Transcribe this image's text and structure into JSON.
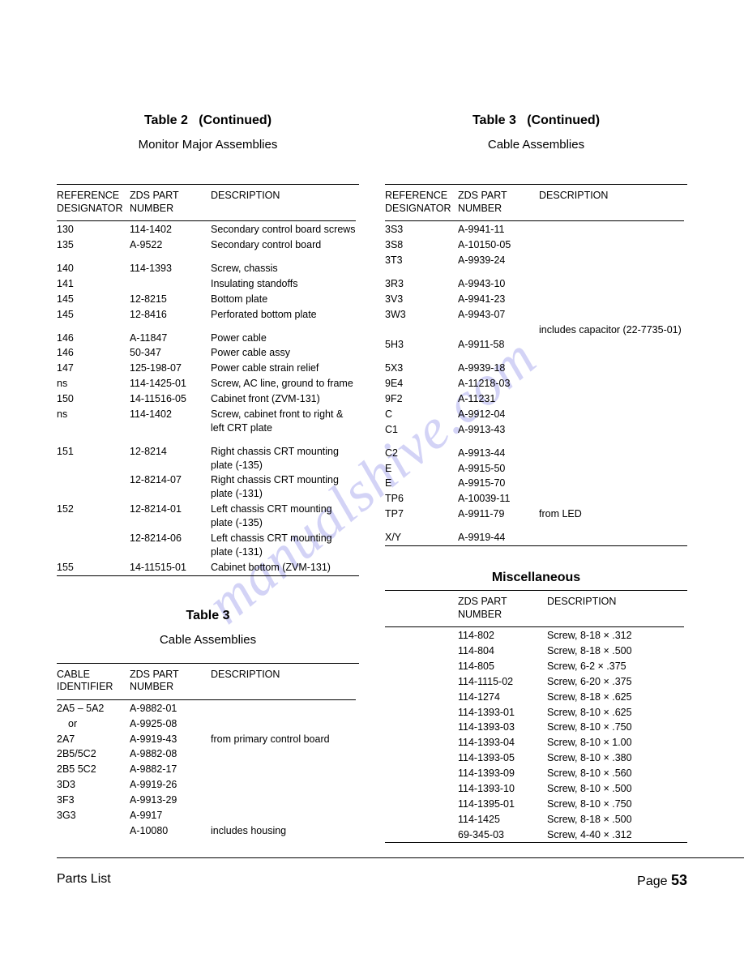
{
  "watermark_text": "manualshive.com",
  "left": {
    "t2_title": "Table 2",
    "t2_cont": "(Continued)",
    "t2_subtitle": "Monitor Major Assemblies",
    "t2_h1a": "REFERENCE",
    "t2_h1b": "DESIGNATOR",
    "t2_h2a": "ZDS PART",
    "t2_h2b": "NUMBER",
    "t2_h3": "DESCRIPTION",
    "t2_rows_g1": [
      {
        "r": "130",
        "p": "114-1402",
        "d": "Secondary control board screws"
      },
      {
        "r": "135",
        "p": "A-9522",
        "d": "Secondary control board"
      }
    ],
    "t2_rows_g2": [
      {
        "r": "140",
        "p": "114-1393",
        "d": "Screw, chassis"
      },
      {
        "r": "141",
        "p": "",
        "d": "Insulating standoffs"
      },
      {
        "r": "145",
        "p": "12-8215",
        "d": "Bottom plate"
      },
      {
        "r": "145",
        "p": "12-8416",
        "d": "Perforated bottom plate"
      }
    ],
    "t2_rows_g3": [
      {
        "r": "146",
        "p": "A-11847",
        "d": "Power cable"
      },
      {
        "r": "146",
        "p": "50-347",
        "d": "Power cable assy"
      },
      {
        "r": "147",
        "p": "125-198-07",
        "d": "Power cable strain relief"
      },
      {
        "r": "ns",
        "p": "114-1425-01",
        "d": "Screw, AC line, ground to frame"
      },
      {
        "r": "150",
        "p": "14-11516-05",
        "d": "Cabinet front (ZVM-131)"
      },
      {
        "r": "ns",
        "p": "114-1402",
        "d": "Screw, cabinet front to right & left CRT plate"
      }
    ],
    "t2_rows_g4": [
      {
        "r": "151",
        "p": "12-8214",
        "d": "Right chassis CRT mounting plate (-135)"
      },
      {
        "r": "",
        "p": "12-8214-07",
        "d": "Right chassis CRT mounting plate (-131)"
      },
      {
        "r": "152",
        "p": "12-8214-01",
        "d": "Left chassis CRT mounting plate (-135)"
      },
      {
        "r": "",
        "p": "12-8214-06",
        "d": "Left chassis CRT mounting plate (-131)"
      },
      {
        "r": "155",
        "p": "14-11515-01",
        "d": "Cabinet bottom (ZVM-131)"
      }
    ],
    "t3_title": "Table 3",
    "t3_subtitle": "Cable Assemblies",
    "t3_h1a": "CABLE",
    "t3_h1b": "IDENTIFIER",
    "t3_h2a": "ZDS PART",
    "t3_h2b": "NUMBER",
    "t3_h3": "DESCRIPTION",
    "t3_rows": [
      {
        "r": "2A5 – 5A2",
        "p": "A-9882-01",
        "d": ""
      },
      {
        "r": "   or",
        "p": "A-9925-08",
        "d": ""
      },
      {
        "r": "2A7",
        "p": "A-9919-43",
        "d": "from primary control board"
      },
      {
        "r": "2B5/5C2",
        "p": "A-9882-08",
        "d": ""
      },
      {
        "r": "2B5 5C2",
        "p": "A-9882-17",
        "d": ""
      },
      {
        "r": "3D3",
        "p": "A-9919-26",
        "d": ""
      },
      {
        "r": "3F3",
        "p": "A-9913-29",
        "d": ""
      },
      {
        "r": "3G3",
        "p": "A-9917",
        "d": ""
      },
      {
        "r": "",
        "p": "A-10080",
        "d": "includes housing"
      }
    ]
  },
  "right": {
    "t3c_title": "Table 3",
    "t3c_cont": "(Continued)",
    "t3c_subtitle": "Cable Assemblies",
    "h1a": "REFERENCE",
    "h1b": "DESIGNATOR",
    "h2a": "ZDS PART",
    "h2b": "NUMBER",
    "h3": "DESCRIPTION",
    "rows_g1": [
      {
        "r": "3S3",
        "p": "A-9941-11",
        "d": ""
      },
      {
        "r": "3S8",
        "p": "A-10150-05",
        "d": ""
      },
      {
        "r": "3T3",
        "p": "A-9939-24",
        "d": ""
      }
    ],
    "rows_g2": [
      {
        "r": "3R3",
        "p": "A-9943-10",
        "d": ""
      },
      {
        "r": "3V3",
        "p": "A-9941-23",
        "d": ""
      },
      {
        "r": "3W3",
        "p": "A-9943-07",
        "d": ""
      },
      {
        "r": "",
        "p": "",
        "d": "includes capacitor (22-7735-01)"
      },
      {
        "r": "5H3",
        "p": "A-9911-58",
        "d": ""
      }
    ],
    "rows_g3": [
      {
        "r": "5X3",
        "p": "A-9939-18",
        "d": ""
      },
      {
        "r": "9E4",
        "p": "A-11218-03",
        "d": ""
      },
      {
        "r": "9F2",
        "p": "A-11231",
        "d": ""
      },
      {
        "r": "C",
        "p": "A-9912-04",
        "d": ""
      },
      {
        "r": "C1",
        "p": "A-9913-43",
        "d": ""
      }
    ],
    "rows_g4": [
      {
        "r": "C2",
        "p": "A-9913-44",
        "d": ""
      },
      {
        "r": "E",
        "p": "A-9915-50",
        "d": ""
      },
      {
        "r": "E",
        "p": "A-9915-70",
        "d": ""
      },
      {
        "r": "TP6",
        "p": "A-10039-11",
        "d": ""
      },
      {
        "r": "TP7",
        "p": "A-9911-79",
        "d": "from LED"
      }
    ],
    "rows_g5": [
      {
        "r": "X/Y",
        "p": "A-9919-44",
        "d": ""
      }
    ],
    "misc_title": "Miscellaneous",
    "misc_h2a": "ZDS PART",
    "misc_h2b": "NUMBER",
    "misc_h3": "DESCRIPTION",
    "misc_rows": [
      {
        "p": "114-802",
        "d": "Screw, 8-18 × .312"
      },
      {
        "p": "114-804",
        "d": "Screw, 8-18 × .500"
      },
      {
        "p": "114-805",
        "d": "Screw, 6-2  × .375"
      },
      {
        "p": "114-1115-02",
        "d": "Screw, 6-20 × .375"
      },
      {
        "p": "114-1274",
        "d": "Screw, 8-18 × .625"
      },
      {
        "p": "114-1393-01",
        "d": "Screw, 8-10 × .625"
      },
      {
        "p": "114-1393-03",
        "d": "Screw, 8-10 × .750"
      },
      {
        "p": "114-1393-04",
        "d": "Screw, 8-10 × 1.00"
      },
      {
        "p": "114-1393-05",
        "d": "Screw, 8-10 × .380"
      },
      {
        "p": "114-1393-09",
        "d": "Screw, 8-10 × .560"
      },
      {
        "p": "114-1393-10",
        "d": "Screw, 8-10 × .500"
      },
      {
        "p": "114-1395-01",
        "d": "Screw, 8-10 × .750"
      },
      {
        "p": "114-1425",
        "d": "Screw, 8-18 × .500"
      },
      {
        "p": "69-345-03",
        "d": "Screw, 4-40 × .312"
      }
    ]
  },
  "footer_left": "Parts  List",
  "footer_right_a": "Page ",
  "footer_right_b": "53"
}
